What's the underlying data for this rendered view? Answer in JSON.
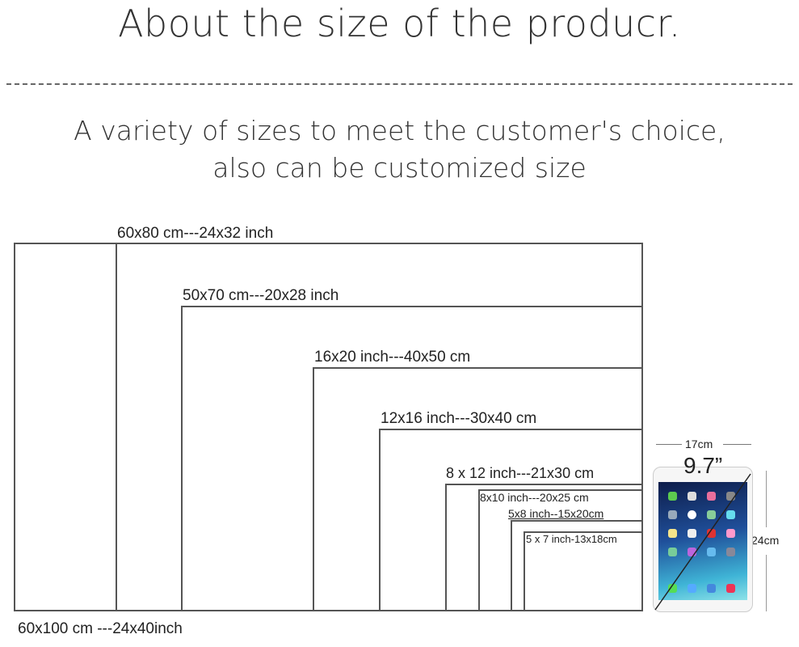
{
  "header": {
    "title": "About the size of the producr."
  },
  "subtitle": {
    "line1": "A variety of sizes to meet the customer's choice,",
    "line2": "also can be customized size"
  },
  "sizes": [
    {
      "label": "60x100 cm ---24x40inch"
    },
    {
      "label": "60x80 cm---24x32 inch"
    },
    {
      "label": "50x70 cm---20x28 inch"
    },
    {
      "label": "16x20 inch---40x50 cm"
    },
    {
      "label": "12x16 inch---30x40 cm"
    },
    {
      "label": "8 x 12 inch---21x30 cm"
    },
    {
      "label": "8x10 inch---20x25 cm"
    },
    {
      "label": "5x8 inch--15x20cm"
    },
    {
      "label": "5 x 7 inch-13x18cm"
    }
  ],
  "reference": {
    "width_label": "17cm",
    "diagonal_label": "9.7”",
    "height_label": "24cm",
    "device_icon": "tablet-icon"
  }
}
